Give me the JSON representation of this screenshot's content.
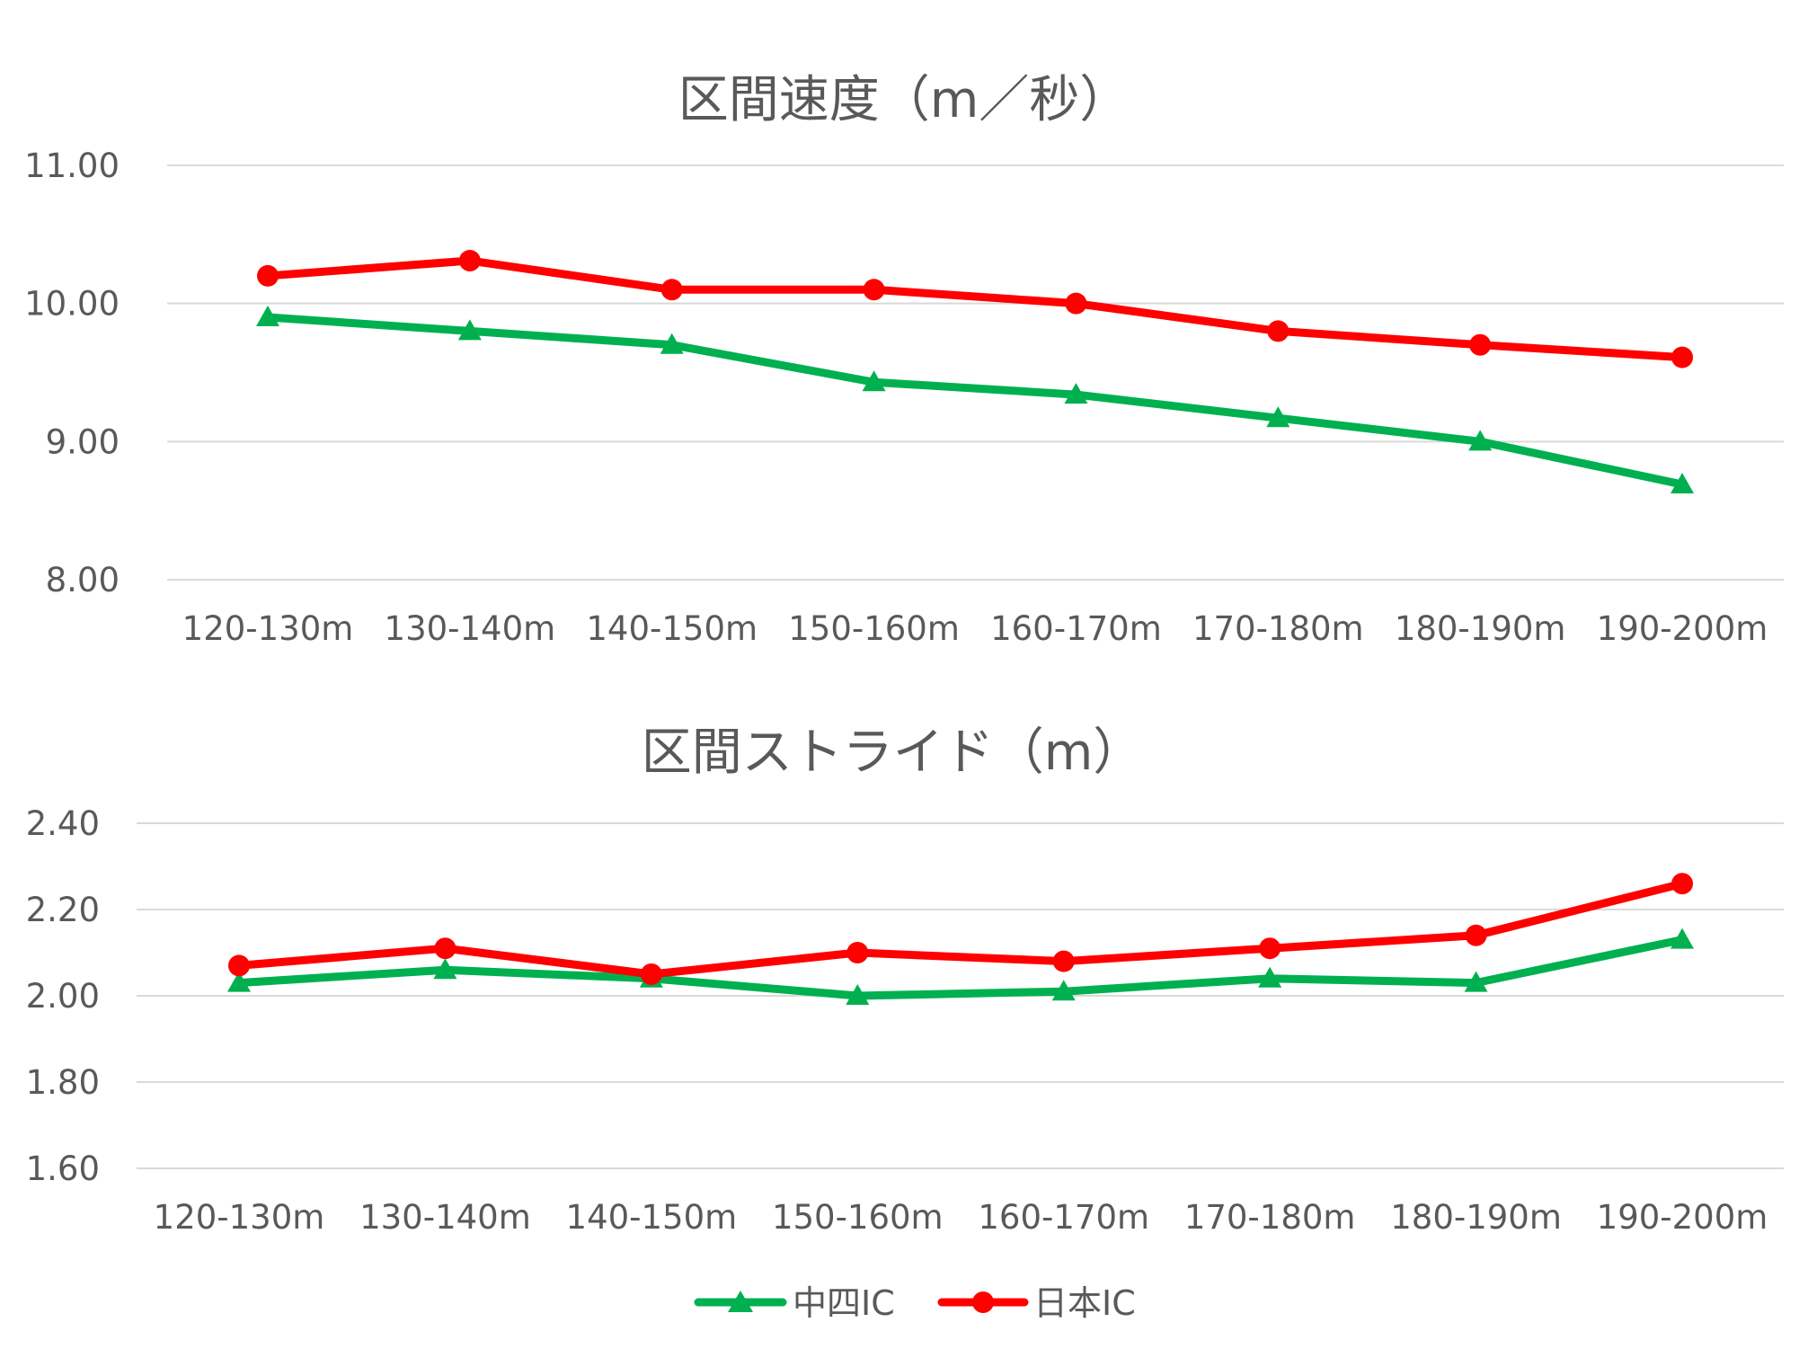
{
  "colors": {
    "chushi": "#00b050",
    "nihon": "#ff0000",
    "grid": "#d9d9d9",
    "text": "#595959"
  },
  "legend": [
    {
      "name": "中四IC",
      "color": "#00b050",
      "marker": "triangle"
    },
    {
      "name": "日本IC",
      "color": "#ff0000",
      "marker": "circle"
    }
  ],
  "chart_data": [
    {
      "type": "line",
      "title": "区間速度（m／秒）",
      "categories": [
        "120-130m",
        "130-140m",
        "140-150m",
        "150-160m",
        "160-170m",
        "170-180m",
        "180-190m",
        "190-200m"
      ],
      "series": [
        {
          "name": "中四IC",
          "marker": "triangle",
          "values": [
            9.9,
            9.8,
            9.7,
            9.43,
            9.34,
            9.17,
            9.0,
            8.69
          ]
        },
        {
          "name": "日本IC",
          "marker": "circle",
          "values": [
            10.2,
            10.31,
            10.1,
            10.1,
            10.0,
            9.8,
            9.7,
            9.61
          ]
        }
      ],
      "ylim": [
        8.0,
        11.0
      ],
      "yticks": [
        "8.00",
        "9.00",
        "10.00",
        "11.00"
      ],
      "grid": true,
      "legend_position": "bottom"
    },
    {
      "type": "line",
      "title": "区間ストライド（m）",
      "categories": [
        "120-130m",
        "130-140m",
        "140-150m",
        "150-160m",
        "160-170m",
        "170-180m",
        "180-190m",
        "190-200m"
      ],
      "series": [
        {
          "name": "中四IC",
          "marker": "triangle",
          "values": [
            2.03,
            2.06,
            2.04,
            2.0,
            2.01,
            2.04,
            2.03,
            2.13
          ]
        },
        {
          "name": "日本IC",
          "marker": "circle",
          "values": [
            2.07,
            2.11,
            2.05,
            2.1,
            2.08,
            2.11,
            2.14,
            2.26
          ]
        }
      ],
      "ylim": [
        1.6,
        2.4
      ],
      "yticks": [
        "1.60",
        "1.80",
        "2.00",
        "2.20",
        "2.40"
      ],
      "grid": true,
      "legend_position": "bottom"
    }
  ]
}
